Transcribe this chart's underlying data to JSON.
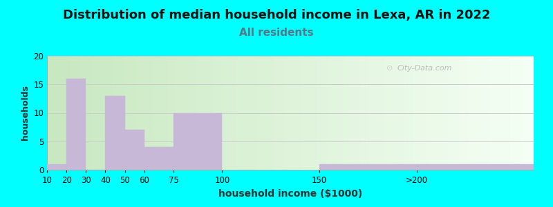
{
  "title": "Distribution of median household income in Lexa, AR in 2022",
  "subtitle": "All residents",
  "xlabel": "household income ($1000)",
  "ylabel": "households",
  "background_outer": "#00FFFF",
  "bar_color": "#C8B8D8",
  "title_fontsize": 13,
  "subtitle_fontsize": 11,
  "subtitle_color": "#557788",
  "xlabel_fontsize": 10,
  "ylabel_fontsize": 9,
  "tick_labels": [
    "10",
    "20",
    "30",
    "40",
    "50",
    "60",
    "75",
    "100",
    "150",
    ">200"
  ],
  "tick_positions": [
    10,
    20,
    30,
    40,
    50,
    60,
    75,
    100,
    150,
    200
  ],
  "bar_lefts": [
    10,
    20,
    30,
    40,
    50,
    60,
    75,
    150,
    200
  ],
  "bar_widths": [
    10,
    10,
    10,
    10,
    10,
    15,
    25,
    50,
    60
  ],
  "bar_heights": [
    1,
    16,
    0,
    13,
    7,
    4,
    10,
    1,
    1
  ],
  "ylim": [
    0,
    20
  ],
  "yticks": [
    0,
    5,
    10,
    15,
    20
  ],
  "watermark": "City-Data.com",
  "grid_color": "#CCCCCC",
  "plot_bg_left": "#d0ecd0",
  "plot_bg_right": "#f8fff8"
}
